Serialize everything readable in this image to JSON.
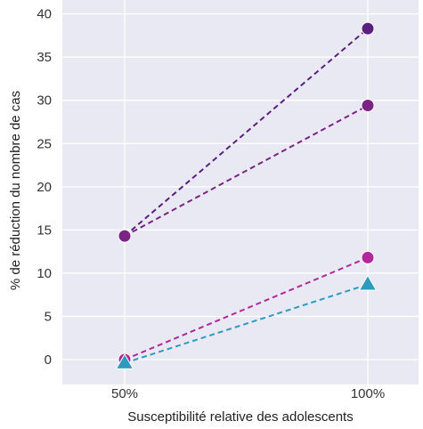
{
  "chart_data": {
    "type": "line",
    "title": "",
    "xlabel": "Susceptibilité relative des adolescents",
    "ylabel": "% de réduction du nombre de cas",
    "categories": [
      "50%",
      "100%"
    ],
    "ylim": [
      -1.5,
      40
    ],
    "yticks": [
      0,
      5,
      10,
      15,
      20,
      25,
      30,
      35,
      40
    ],
    "grid": true,
    "background": "#e9e9f3",
    "series": [
      {
        "values": [
          14.3,
          38.3
        ],
        "color": "#5b1f7e",
        "marker": "circle"
      },
      {
        "values": [
          14.3,
          29.4
        ],
        "color": "#7a2483",
        "marker": "circle"
      },
      {
        "values": [
          0.0,
          11.8
        ],
        "color": "#b0289a",
        "marker": "circle"
      },
      {
        "values": [
          -0.4,
          8.7
        ],
        "color": "#2e9bbe",
        "marker": "triangle"
      }
    ]
  }
}
